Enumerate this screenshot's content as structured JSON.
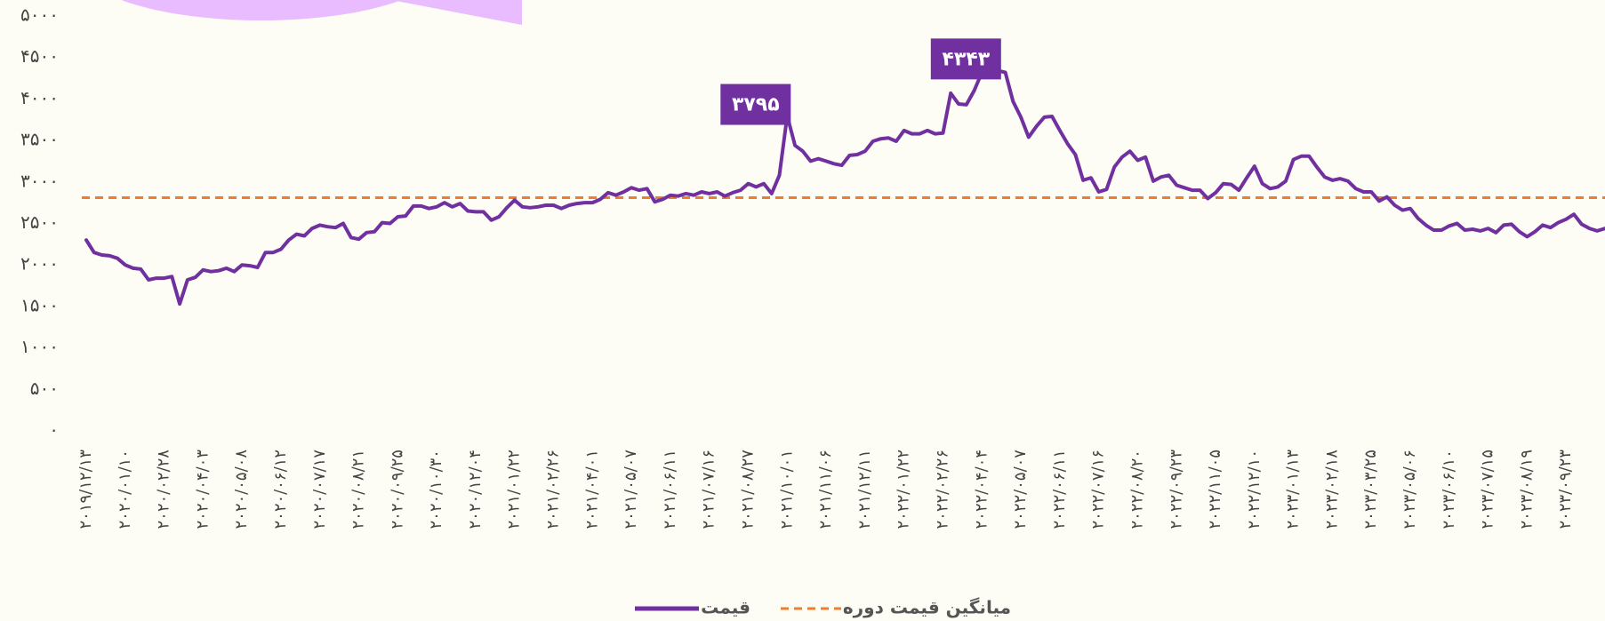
{
  "chart_data": {
    "type": "line",
    "categories": [
      "۲۰۱۹/۱۲/۱۳",
      null,
      null,
      null,
      null,
      "۲۰۲۰/۰۱/۱۰",
      null,
      null,
      null,
      null,
      "۲۰۲۰/۰۲/۲۸",
      null,
      null,
      null,
      null,
      "۲۰۲۰/۰۴/۰۳",
      null,
      null,
      null,
      null,
      "۲۰۲۰/۰۵/۰۸",
      null,
      null,
      null,
      null,
      "۲۰۲۰/۰۶/۱۲",
      null,
      null,
      null,
      null,
      "۲۰۲۰/۰۷/۱۷",
      null,
      null,
      null,
      null,
      "۲۰۲۰/۰۸/۲۱",
      null,
      null,
      null,
      null,
      "۲۰۲۰/۰۹/۲۵",
      null,
      null,
      null,
      null,
      "۲۰۲۰/۱۰/۳۰",
      null,
      null,
      null,
      null,
      "۲۰۲۰/۱۲/۰۴",
      null,
      null,
      null,
      null,
      "۲۰۲۱/۰۱/۲۲",
      null,
      null,
      null,
      null,
      "۲۰۲۱/۰۲/۲۶",
      null,
      null,
      null,
      null,
      "۲۰۲۱/۰۴/۰۱",
      null,
      null,
      null,
      null,
      "۲۰۲۱/۰۵/۰۷",
      null,
      null,
      null,
      null,
      "۲۰۲۱/۰۶/۱۱",
      null,
      null,
      null,
      null,
      "۲۰۲۱/۰۷/۱۶",
      null,
      null,
      null,
      null,
      "۲۰۲۱/۰۸/۲۷",
      null,
      null,
      null,
      null,
      "۲۰۲۱/۱۰/۰۱",
      null,
      null,
      null,
      null,
      "۲۰۲۱/۱۱/۰۶",
      null,
      null,
      null,
      null,
      "۲۰۲۱/۱۲/۱۱",
      null,
      null,
      null,
      null,
      "۲۰۲۲/۰۱/۲۲",
      null,
      null,
      null,
      null,
      "۲۰۲۲/۰۲/۲۶",
      null,
      null,
      null,
      null,
      "۲۰۲۲/۰۴/۰۴",
      null,
      null,
      null,
      null,
      "۲۰۲۲/۰۵/۰۷",
      null,
      null,
      null,
      null,
      "۲۰۲۲/۰۶/۱۱",
      null,
      null,
      null,
      null,
      "۲۰۲۲/۰۷/۱۶",
      null,
      null,
      null,
      null,
      "۲۰۲۲/۰۸/۲۰",
      null,
      null,
      null,
      null,
      "۲۰۲۲/۰۹/۲۳",
      null,
      null,
      null,
      null,
      "۲۰۲۲/۱۱/۰۵",
      null,
      null,
      null,
      null,
      "۲۰۲۲/۱۲/۱۰",
      null,
      null,
      null,
      null,
      "۲۰۲۳/۰۱/۱۳",
      null,
      null,
      null,
      null,
      "۲۰۲۳/۰۲/۱۸",
      null,
      null,
      null,
      null,
      "۲۰۲۳/۰۳/۲۵",
      null,
      null,
      null,
      null,
      "۲۰۲۳/۰۵/۰۶",
      null,
      null,
      null,
      null,
      "۲۰۲۳/۰۶/۱۰",
      null,
      null,
      null,
      null,
      "۲۰۲۳/۰۷/۱۵",
      null,
      null,
      null,
      null,
      "۲۰۲۳/۰۸/۱۹",
      null,
      null,
      null,
      null,
      "۲۰۲۳/۰۹/۲۳",
      null,
      null,
      null,
      null,
      null
    ],
    "series": [
      {
        "name": "قیمت",
        "color": "#7030a0",
        "values": [
          2300,
          2150,
          2120,
          2110,
          2080,
          2000,
          1960,
          1950,
          1820,
          1840,
          1840,
          1860,
          1530,
          1820,
          1850,
          1940,
          1920,
          1930,
          1960,
          1920,
          2000,
          1990,
          1970,
          2150,
          2150,
          2190,
          2300,
          2370,
          2350,
          2440,
          2480,
          2460,
          2450,
          2500,
          2330,
          2310,
          2390,
          2400,
          2510,
          2500,
          2580,
          2590,
          2710,
          2710,
          2680,
          2700,
          2750,
          2700,
          2740,
          2650,
          2640,
          2640,
          2540,
          2580,
          2690,
          2780,
          2700,
          2690,
          2700,
          2720,
          2720,
          2680,
          2720,
          2740,
          2750,
          2750,
          2790,
          2870,
          2840,
          2880,
          2930,
          2900,
          2920,
          2760,
          2790,
          2840,
          2830,
          2860,
          2840,
          2880,
          2860,
          2880,
          2830,
          2870,
          2900,
          2980,
          2940,
          2980,
          2860,
          3080,
          3795,
          3440,
          3370,
          3250,
          3280,
          3250,
          3220,
          3200,
          3320,
          3330,
          3370,
          3490,
          3520,
          3530,
          3490,
          3620,
          3580,
          3580,
          3620,
          3580,
          3590,
          4070,
          3940,
          3930,
          4100,
          4320,
          4300,
          4343,
          4320,
          3970,
          3780,
          3540,
          3670,
          3780,
          3790,
          3620,
          3460,
          3330,
          3020,
          3050,
          2880,
          2910,
          3180,
          3300,
          3370,
          3260,
          3300,
          3010,
          3060,
          3080,
          2960,
          2930,
          2900,
          2900,
          2800,
          2870,
          2980,
          2970,
          2900,
          3050,
          3190,
          2980,
          2920,
          2940,
          3010,
          3270,
          3310,
          3310,
          3180,
          3060,
          3020,
          3040,
          3010,
          2920,
          2880,
          2880,
          2770,
          2820,
          2720,
          2660,
          2680,
          2560,
          2480,
          2420,
          2420,
          2470,
          2500,
          2420,
          2430,
          2410,
          2440,
          2390,
          2480,
          2490,
          2400,
          2340,
          2400,
          2480,
          2450,
          2510,
          2550,
          2610,
          2490,
          2440,
          2410,
          2440
        ]
      }
    ],
    "average": {
      "name": "میانگین قیمت دوره",
      "value": 2810,
      "color": "#ed7d31"
    },
    "annotations": [
      {
        "value": 3795,
        "label": "۳۷۹۵"
      },
      {
        "value": 4343,
        "label": "۴۳۴۳"
      }
    ],
    "ylim": [
      0,
      5000
    ],
    "yticks": [
      {
        "value": 0,
        "label": "۰"
      },
      {
        "value": 500,
        "label": "۵۰۰"
      },
      {
        "value": 1000,
        "label": "۱۰۰۰"
      },
      {
        "value": 1500,
        "label": "۱۵۰۰"
      },
      {
        "value": 2000,
        "label": "۲۰۰۰"
      },
      {
        "value": 2500,
        "label": "۲۵۰۰"
      },
      {
        "value": 3000,
        "label": "۳۰۰۰"
      },
      {
        "value": 3500,
        "label": "۳۵۰۰"
      },
      {
        "value": 4000,
        "label": "۴۰۰۰"
      },
      {
        "value": 4500,
        "label": "۴۵۰۰"
      },
      {
        "value": 5000,
        "label": "۵۰۰۰"
      }
    ],
    "grid": false
  }
}
